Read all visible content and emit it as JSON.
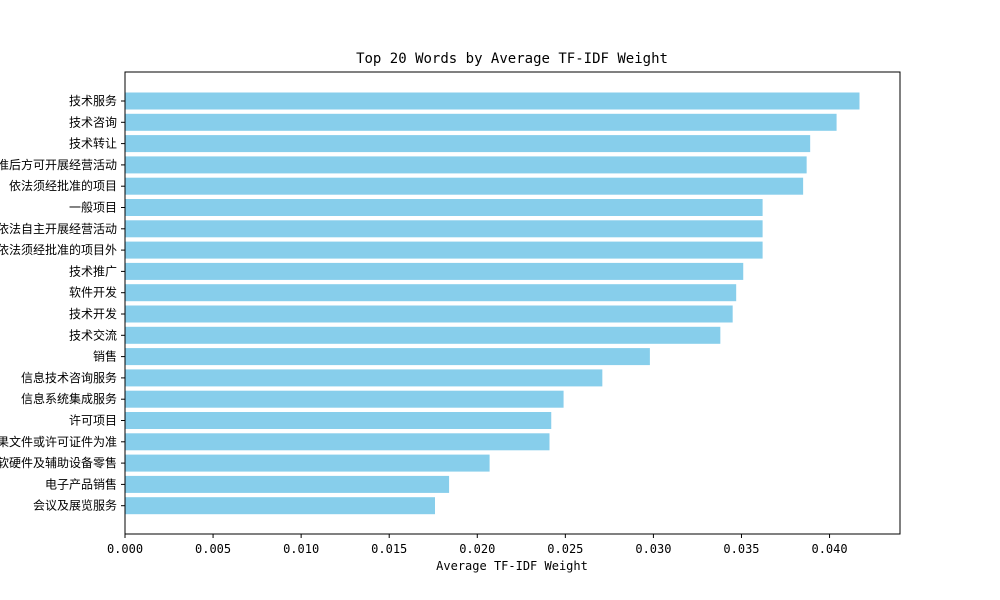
{
  "chart_data": {
    "type": "bar",
    "orientation": "horizontal",
    "title": "Top 20 Words by Average TF-IDF Weight",
    "xlabel": "Average TF-IDF Weight",
    "ylabel": "",
    "xlim": [
      0,
      0.044
    ],
    "xticks": [
      0.0,
      0.005,
      0.01,
      0.015,
      0.02,
      0.025,
      0.03,
      0.035,
      0.04
    ],
    "xtick_labels": [
      "0.000",
      "0.005",
      "0.010",
      "0.015",
      "0.020",
      "0.025",
      "0.030",
      "0.035",
      "0.040"
    ],
    "bar_color": "#87ceeb",
    "grid": false,
    "categories": [
      "技术服务",
      "技术咨询",
      "技术转让",
      "经相关部门批准后方可开展经营活动",
      "依法须经批准的项目",
      "一般项目",
      "凭营业执照依法自主开展经营活动",
      "除依法须经批准的项目外",
      "技术推广",
      "软件开发",
      "技术开发",
      "技术交流",
      "销售",
      "信息技术咨询服务",
      "信息系统集成服务",
      "许可项目",
      "具体经营项目以审批结果文件或许可证件为准",
      "计算机软硬件及辅助设备零售",
      "电子产品销售",
      "会议及展览服务"
    ],
    "values": [
      0.0417,
      0.0404,
      0.0389,
      0.0387,
      0.0385,
      0.0362,
      0.0362,
      0.0362,
      0.0351,
      0.0347,
      0.0345,
      0.0338,
      0.0298,
      0.0271,
      0.0249,
      0.0242,
      0.0241,
      0.0207,
      0.0184,
      0.0176
    ]
  }
}
